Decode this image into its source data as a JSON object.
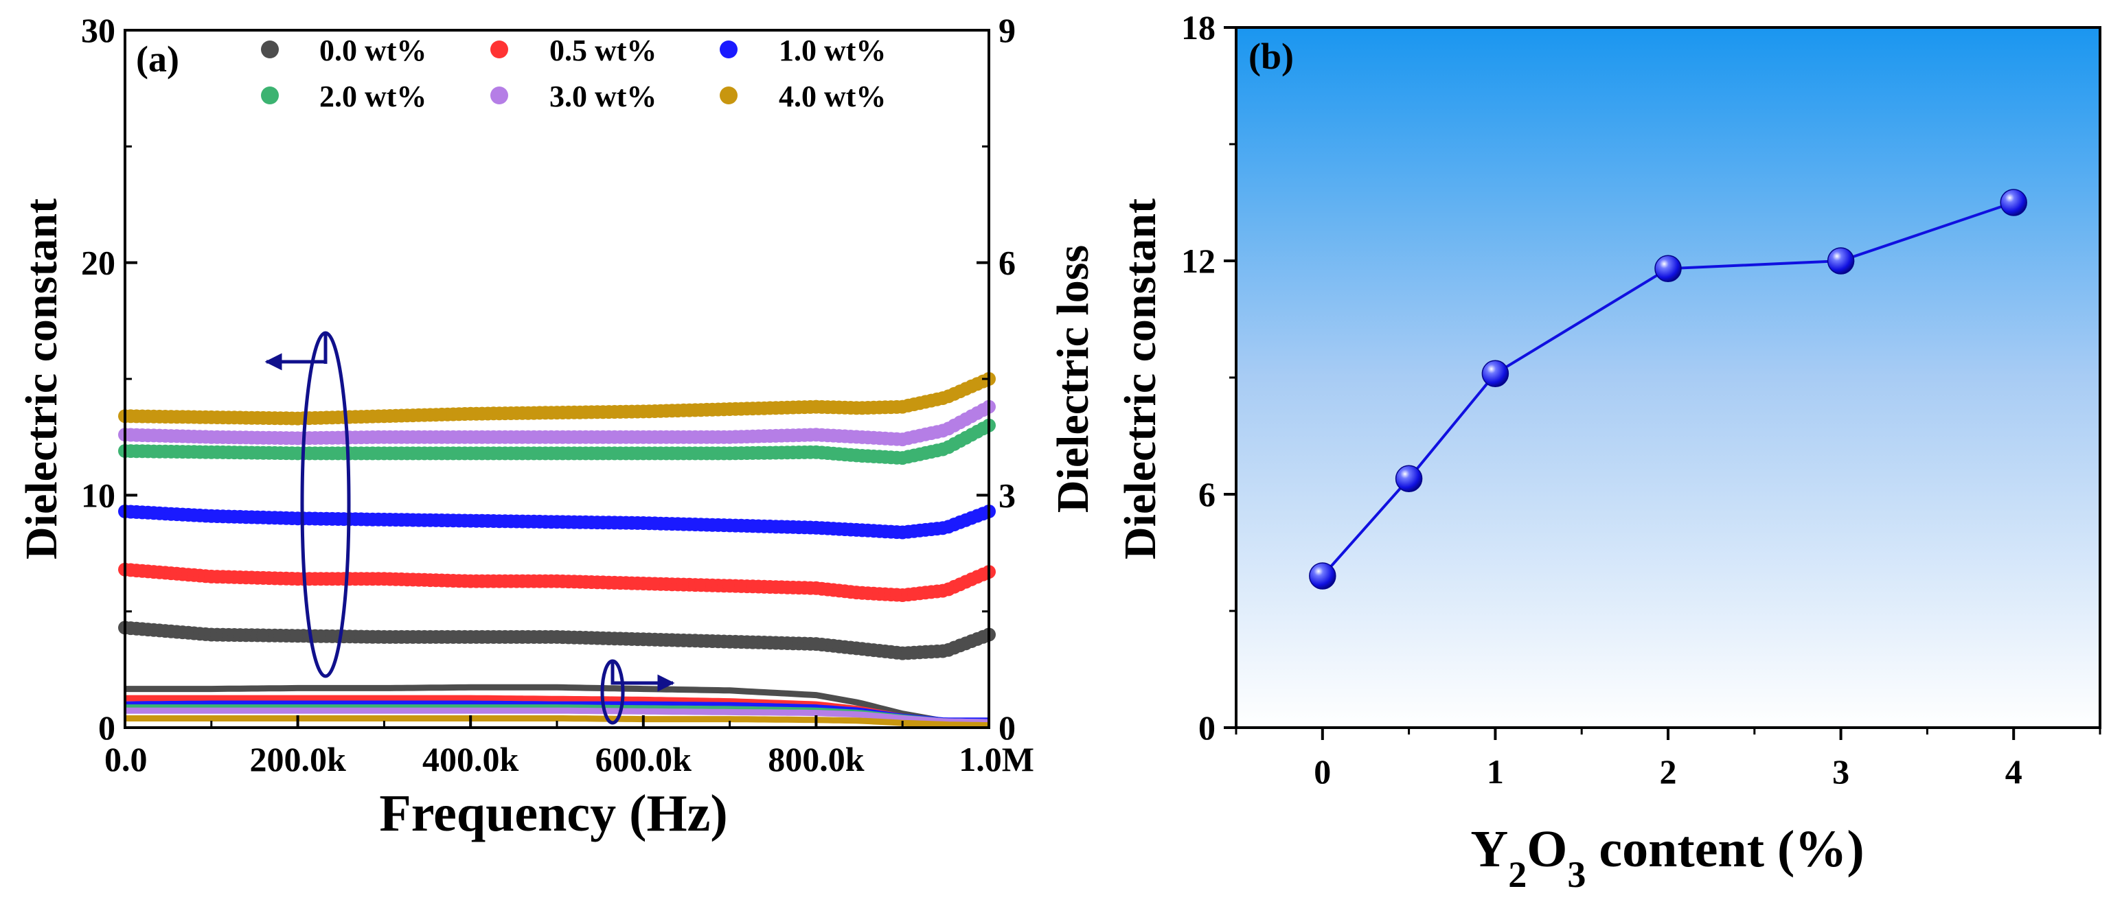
{
  "chart_data": [
    {
      "panel_label": "(a)",
      "type": "line",
      "xlabel": "Frequency (Hz)",
      "ylabel_left": "Dielectric constant",
      "ylabel_right": "Dielectric loss",
      "xlim": [
        0,
        1000000
      ],
      "ylim_left": [
        0,
        30
      ],
      "ylim_right": [
        0,
        9
      ],
      "x_ticks": [
        0,
        200000,
        400000,
        600000,
        800000,
        1000000
      ],
      "x_tick_labels": [
        "0.0",
        "200.0k",
        "400.0k",
        "600.0k",
        "800.0k",
        "1.0M"
      ],
      "yleft_ticks": [
        0,
        10,
        20,
        30
      ],
      "yleft_tick_labels": [
        "0",
        "10",
        "20",
        "30"
      ],
      "yright_ticks": [
        0,
        3,
        6,
        9
      ],
      "yright_tick_labels": [
        "0",
        "3",
        "6",
        "9"
      ],
      "legend_position": "top",
      "x": [
        0,
        100000,
        200000,
        300000,
        400000,
        500000,
        600000,
        700000,
        800000,
        850000,
        900000,
        950000,
        1000000
      ],
      "series": [
        {
          "name": "0.0 wt%",
          "color": "#4d4d4d",
          "dielectric_constant": [
            4.3,
            4.0,
            3.95,
            3.9,
            3.9,
            3.9,
            3.8,
            3.7,
            3.6,
            3.4,
            3.2,
            3.3,
            4.0
          ],
          "dielectric_loss": [
            0.5,
            0.5,
            0.51,
            0.51,
            0.52,
            0.52,
            0.5,
            0.48,
            0.42,
            0.32,
            0.18,
            0.08,
            0.06
          ]
        },
        {
          "name": "0.5 wt%",
          "color": "#ff3333",
          "dielectric_constant": [
            6.8,
            6.5,
            6.4,
            6.4,
            6.3,
            6.3,
            6.2,
            6.1,
            6.0,
            5.8,
            5.7,
            5.9,
            6.7
          ],
          "dielectric_loss": [
            0.38,
            0.38,
            0.38,
            0.38,
            0.38,
            0.37,
            0.36,
            0.34,
            0.3,
            0.24,
            0.14,
            0.07,
            0.05
          ]
        },
        {
          "name": "1.0 wt%",
          "color": "#1a1aff",
          "dielectric_constant": [
            9.3,
            9.1,
            9.0,
            8.95,
            8.9,
            8.85,
            8.8,
            8.7,
            8.6,
            8.5,
            8.4,
            8.6,
            9.3
          ],
          "dielectric_loss": [
            0.3,
            0.31,
            0.31,
            0.31,
            0.31,
            0.3,
            0.3,
            0.29,
            0.26,
            0.22,
            0.14,
            0.09,
            0.09
          ]
        },
        {
          "name": "2.0 wt%",
          "color": "#3cb371",
          "dielectric_constant": [
            11.9,
            11.85,
            11.8,
            11.8,
            11.8,
            11.8,
            11.8,
            11.8,
            11.85,
            11.7,
            11.6,
            12.0,
            13.0
          ],
          "dielectric_loss": [
            0.26,
            0.26,
            0.26,
            0.26,
            0.26,
            0.26,
            0.25,
            0.24,
            0.22,
            0.19,
            0.13,
            0.08,
            0.07
          ]
        },
        {
          "name": "3.0 wt%",
          "color": "#b57ee6",
          "dielectric_constant": [
            12.6,
            12.5,
            12.45,
            12.5,
            12.5,
            12.5,
            12.5,
            12.5,
            12.6,
            12.5,
            12.4,
            12.8,
            13.8
          ],
          "dielectric_loss": [
            0.22,
            0.22,
            0.22,
            0.22,
            0.22,
            0.22,
            0.21,
            0.2,
            0.19,
            0.17,
            0.12,
            0.08,
            0.07
          ]
        },
        {
          "name": "4.0 wt%",
          "color": "#c8960f",
          "dielectric_constant": [
            13.4,
            13.35,
            13.3,
            13.4,
            13.5,
            13.55,
            13.6,
            13.7,
            13.8,
            13.75,
            13.8,
            14.2,
            15.0
          ],
          "dielectric_loss": [
            0.12,
            0.12,
            0.12,
            0.12,
            0.12,
            0.12,
            0.11,
            0.11,
            0.1,
            0.09,
            0.06,
            0.04,
            0.03
          ]
        }
      ]
    },
    {
      "panel_label": "(b)",
      "type": "line",
      "xlabel": "Y2O3 content (%)",
      "ylabel": "Dielectric constant",
      "xlim": [
        -0.5,
        4.5
      ],
      "ylim": [
        0,
        18
      ],
      "x_ticks": [
        0,
        1,
        2,
        3,
        4
      ],
      "x_tick_labels": [
        "0",
        "1",
        "2",
        "3",
        "4"
      ],
      "y_ticks": [
        0,
        6,
        12,
        18
      ],
      "y_tick_labels": [
        "0",
        "6",
        "12",
        "18"
      ],
      "background": "blue-to-white vertical gradient",
      "series": [
        {
          "name": "Dielectric constant",
          "color": "#1010e0",
          "x": [
            0,
            0.5,
            1,
            2,
            3,
            4
          ],
          "values": [
            3.9,
            6.4,
            9.1,
            11.8,
            12.0,
            13.5
          ]
        }
      ]
    }
  ]
}
